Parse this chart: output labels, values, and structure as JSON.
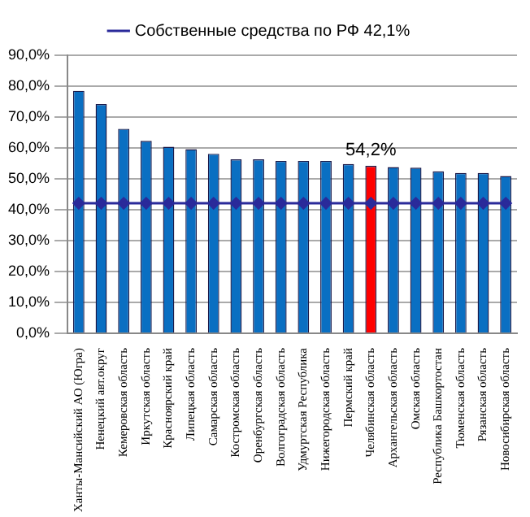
{
  "chart_data": {
    "type": "bar",
    "categories": [
      "Ханты-Мансийский АО (Югра)",
      "Ненецкий авт.округ",
      "Кемеровская область",
      "Иркутская область",
      "Красноярский край",
      "Липецкая область",
      "Самарская область",
      "Костромская область",
      "Оренбургская область",
      "Волгоградская область",
      "Удмуртская Республика",
      "Нижегородская область",
      "Пермский край",
      "Челябинская область",
      "Архангельская область",
      "Омская область",
      "Республика Башкортостан",
      "Тюменская область",
      "Рязанская область",
      "Новосибирская область"
    ],
    "series": [
      {
        "colors": [
          "#0a6fc2",
          "#0a6fc2",
          "#0a6fc2",
          "#0a6fc2",
          "#0a6fc2",
          "#0a6fc2",
          "#0a6fc2",
          "#0a6fc2",
          "#0a6fc2",
          "#0a6fc2",
          "#0a6fc2",
          "#0a6fc2",
          "#0a6fc2",
          "#ff0000",
          "#0a6fc2",
          "#0a6fc2",
          "#0a6fc2",
          "#0a6fc2",
          "#0a6fc2",
          "#0a6fc2"
        ],
        "values": [
          78.5,
          74.2,
          66.2,
          62.3,
          60.4,
          59.6,
          58.1,
          56.3,
          56.3,
          55.8,
          55.8,
          55.8,
          54.8,
          54.2,
          53.8,
          53.6,
          52.4,
          51.9,
          51.9,
          50.9
        ],
        "value_labels": [
          null,
          null,
          null,
          null,
          null,
          null,
          null,
          null,
          null,
          null,
          null,
          null,
          null,
          "54,2%",
          null,
          null,
          null,
          null,
          null,
          null
        ]
      },
      {
        "type": "line",
        "name": "Собственные средства по РФ 42,1%",
        "color": "#2a2a9a",
        "values": [
          42.1,
          42.1,
          42.1,
          42.1,
          42.1,
          42.1,
          42.1,
          42.1,
          42.1,
          42.1,
          42.1,
          42.1,
          42.1,
          42.1,
          42.1,
          42.1,
          42.1,
          42.1,
          42.1,
          42.1
        ]
      }
    ],
    "ylim": [
      0,
      90
    ],
    "yticks": [
      {
        "value": 0,
        "label": "0,0%"
      },
      {
        "value": 10,
        "label": "10,0%"
      },
      {
        "value": 20,
        "label": "20,0%"
      },
      {
        "value": 30,
        "label": "30,0%"
      },
      {
        "value": 40,
        "label": "40,0%"
      },
      {
        "value": 50,
        "label": "50,0%"
      },
      {
        "value": 60,
        "label": "60,0%"
      },
      {
        "value": 70,
        "label": "70,0%"
      },
      {
        "value": 80,
        "label": "80,0%"
      },
      {
        "value": 90,
        "label": "90,0%"
      }
    ],
    "grid": "y",
    "legend": "top",
    "marker": "diamond"
  }
}
